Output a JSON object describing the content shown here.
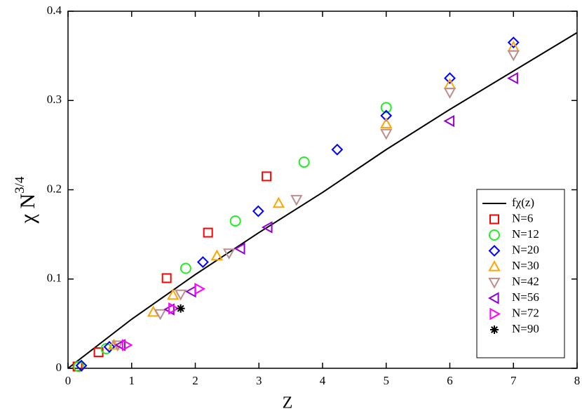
{
  "chart_data": {
    "type": "scatter",
    "x_label": "Z",
    "y_label": "χ N",
    "y_label_exponent": "3/4",
    "xlim": [
      0,
      8
    ],
    "xticks": [
      0,
      1,
      2,
      3,
      4,
      5,
      6,
      7,
      8
    ],
    "ylim": [
      0,
      0.4
    ],
    "yticks": [
      0,
      0.1,
      0.2,
      0.3,
      0.4
    ],
    "legend_position": "lower right",
    "series": [
      {
        "name": "fχ(z)",
        "marker": "line",
        "color": "#000000",
        "x": [
          0,
          1,
          2,
          3,
          4,
          5,
          6,
          7,
          8
        ],
        "values": [
          0,
          0.055,
          0.105,
          0.152,
          0.197,
          0.245,
          0.29,
          0.333,
          0.376
        ]
      },
      {
        "name": "N=6",
        "marker": "square",
        "color": "#ff0000",
        "x": [
          0.15,
          0.48,
          1.55,
          2.2,
          3.12
        ],
        "values": [
          0.002,
          0.018,
          0.101,
          0.152,
          0.215
        ]
      },
      {
        "name": "N=12",
        "marker": "circle",
        "color": "#22ee22",
        "x": [
          0.17,
          0.6,
          1.85,
          2.63,
          3.71,
          5.0
        ],
        "values": [
          0.002,
          0.022,
          0.112,
          0.165,
          0.231,
          0.292
        ]
      },
      {
        "name": "N=20",
        "marker": "diamond",
        "color": "#0000ff",
        "x": [
          0.21,
          0.65,
          2.12,
          2.99,
          4.23,
          5.0,
          6.0,
          7.0
        ],
        "values": [
          0.003,
          0.024,
          0.119,
          0.176,
          0.245,
          0.283,
          0.325,
          0.365
        ]
      },
      {
        "name": "N=30",
        "marker": "triangle-up",
        "color": "#ffa500",
        "x": [
          0.72,
          1.34,
          1.65,
          2.34,
          3.31,
          5.0,
          6.0,
          7.0
        ],
        "values": [
          0.026,
          0.063,
          0.082,
          0.126,
          0.185,
          0.274,
          0.318,
          0.36
        ]
      },
      {
        "name": "N=42",
        "marker": "triangle-down",
        "color": "#bc8f8f",
        "x": [
          0.78,
          1.45,
          1.77,
          2.53,
          3.59,
          5.0,
          6.0,
          7.0
        ],
        "values": [
          0.026,
          0.061,
          0.083,
          0.129,
          0.189,
          0.263,
          0.309,
          0.351
        ]
      },
      {
        "name": "N=56",
        "marker": "triangle-left",
        "color": "#9400d3",
        "x": [
          0.83,
          1.6,
          1.94,
          2.71,
          3.14,
          6.0,
          7.0
        ],
        "values": [
          0.026,
          0.066,
          0.086,
          0.134,
          0.158,
          0.277,
          0.325
        ]
      },
      {
        "name": "N=72",
        "marker": "triangle-right",
        "color": "#ff00ff",
        "x": [
          0.92,
          1.65,
          2.06
        ],
        "values": [
          0.026,
          0.067,
          0.089
        ]
      },
      {
        "name": "N=90",
        "marker": "star",
        "color": "#000000",
        "x": [
          1.77
        ],
        "values": [
          0.067
        ]
      }
    ]
  }
}
